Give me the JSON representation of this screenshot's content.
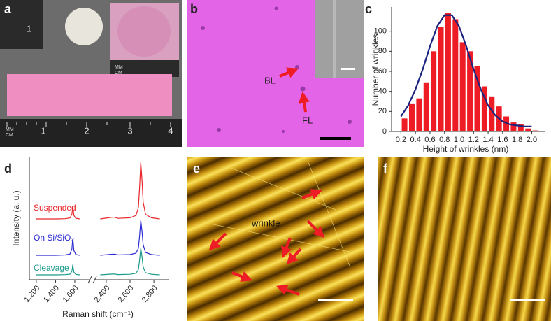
{
  "panel_labels": [
    "a",
    "b",
    "c",
    "d",
    "e",
    "f"
  ],
  "photo_a": {
    "ruler_numbers": [
      "1",
      "2",
      "3",
      "4"
    ],
    "ruler_units": [
      "MM",
      "CM"
    ]
  },
  "micrograph_b": {
    "labels": [
      "BL",
      "FL"
    ]
  },
  "afm_e": {
    "label": "wrinkle"
  },
  "chart_data": [
    {
      "type": "histogram",
      "xlabel": "Height of wrinkles (nm)",
      "ylabel": "Number of wrinkles",
      "bins": [
        0.2,
        0.3,
        0.4,
        0.5,
        0.6,
        0.7,
        0.8,
        0.9,
        1.0,
        1.1,
        1.2,
        1.3,
        1.4,
        1.5,
        1.6,
        1.7,
        1.8,
        1.9,
        2.0,
        2.1
      ],
      "values": [
        13,
        28,
        33,
        49,
        80,
        104,
        118,
        112,
        89,
        80,
        65,
        45,
        35,
        25,
        15,
        9,
        7,
        3,
        1
      ],
      "color": "#ee1c24",
      "fit": {
        "x": [
          0.2,
          0.3,
          0.4,
          0.5,
          0.6,
          0.7,
          0.8,
          0.9,
          1.0,
          1.1,
          1.2,
          1.3,
          1.4,
          1.5,
          1.6,
          1.7,
          1.8,
          1.9,
          2.0
        ],
        "values": [
          15,
          26,
          42,
          62,
          85,
          105,
          116,
          116,
          105,
          85,
          62,
          42,
          26,
          16,
          10,
          7,
          6,
          5,
          5
        ],
        "color": "#1a237e"
      },
      "xlim": [
        0.1,
        2.15
      ],
      "xticks": [
        0.2,
        0.4,
        0.6,
        0.8,
        {
          "value": 1,
          "label": "1.0"
        },
        1.2,
        1.4,
        1.6,
        1.8,
        {
          "value": 2,
          "label": "2.0"
        }
      ],
      "ylim": [
        0,
        120
      ],
      "yticks": [
        0,
        20,
        40,
        60,
        80,
        100
      ]
    },
    {
      "type": "line",
      "xlabel": "Raman shift (cm⁻¹)",
      "ylabel": "Intensity (a. u.)",
      "x": [
        1200,
        1300,
        1400,
        1500,
        1550,
        1570,
        1578,
        1582,
        1590,
        1610,
        1650,
        2350,
        2450,
        2470,
        2500,
        2600,
        2650,
        2670,
        2680,
        2690,
        2700,
        2710,
        2730,
        2780,
        2850
      ],
      "segments": [
        {
          "xlim": [
            1150,
            1680
          ],
          "xticks": [
            {
              "value": 1200,
              "label": "1,200"
            },
            {
              "value": 1400,
              "label": "1,400"
            },
            {
              "value": 1600,
              "label": "1,600"
            }
          ]
        },
        {
          "xlim": [
            2330,
            2870
          ],
          "xticks": [
            {
              "value": 2400,
              "label": "2,400"
            },
            {
              "value": 2600,
              "label": "2,600"
            },
            {
              "value": 2800,
              "label": "2,800"
            }
          ]
        }
      ],
      "ylim": [
        -0.7,
        17
      ],
      "series": [
        {
          "name": "Suspended",
          "color": "#e8262b",
          "values": [
            8,
            8,
            8,
            8.03,
            8.14,
            8.68,
            9.7,
            9.53,
            8.51,
            8.09,
            8,
            8,
            8.24,
            8.24,
            8.08,
            8.16,
            8.49,
            9.62,
            12.46,
            16.1,
            13.67,
            10.43,
            8.65,
            8.16,
            8
          ]
        },
        {
          "name": "On Si/SiO₂",
          "color": "#2a2ad0",
          "values": [
            2.8,
            2.8,
            2.8,
            2.85,
            2.98,
            3.72,
            5.1,
            4.87,
            3.49,
            2.92,
            2.8,
            2.8,
            2.95,
            2.95,
            2.85,
            2.9,
            3.1,
            3.8,
            5.55,
            7.8,
            6.3,
            4.3,
            3.2,
            2.9,
            2.8
          ]
        },
        {
          "name": "Cleavage",
          "color": "#1a9a8a",
          "values": [
            0,
            0,
            0,
            0.03,
            0.1,
            0.52,
            1.3,
            1.17,
            0.39,
            0.07,
            0,
            0,
            0.11,
            0.11,
            0.04,
            0.08,
            0.23,
            0.76,
            2.09,
            3.8,
            2.66,
            1.14,
            0.3,
            0.08,
            0
          ]
        }
      ]
    }
  ]
}
